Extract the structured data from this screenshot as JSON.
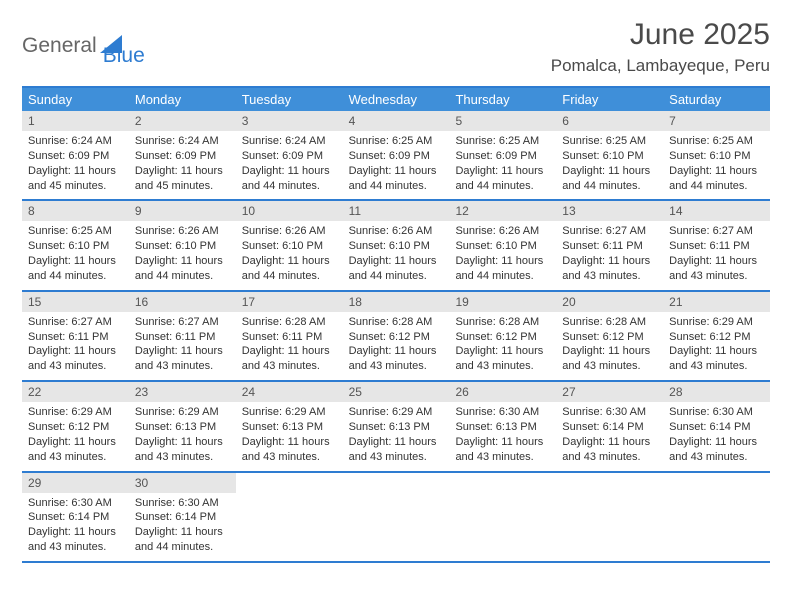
{
  "brand": {
    "part1": "General",
    "part2": "Blue"
  },
  "title": "June 2025",
  "location": "Pomalca, Lambayeque, Peru",
  "colors": {
    "accent": "#2e7cd1",
    "header_bg": "#3f8fd9",
    "daynum_bg": "#e6e6e6",
    "text": "#333333",
    "title_text": "#4a4a4a"
  },
  "day_names": [
    "Sunday",
    "Monday",
    "Tuesday",
    "Wednesday",
    "Thursday",
    "Friday",
    "Saturday"
  ],
  "weeks": [
    [
      {
        "n": "1",
        "sr": "6:24 AM",
        "ss": "6:09 PM",
        "dl": "11 hours and 45 minutes."
      },
      {
        "n": "2",
        "sr": "6:24 AM",
        "ss": "6:09 PM",
        "dl": "11 hours and 45 minutes."
      },
      {
        "n": "3",
        "sr": "6:24 AM",
        "ss": "6:09 PM",
        "dl": "11 hours and 44 minutes."
      },
      {
        "n": "4",
        "sr": "6:25 AM",
        "ss": "6:09 PM",
        "dl": "11 hours and 44 minutes."
      },
      {
        "n": "5",
        "sr": "6:25 AM",
        "ss": "6:09 PM",
        "dl": "11 hours and 44 minutes."
      },
      {
        "n": "6",
        "sr": "6:25 AM",
        "ss": "6:10 PM",
        "dl": "11 hours and 44 minutes."
      },
      {
        "n": "7",
        "sr": "6:25 AM",
        "ss": "6:10 PM",
        "dl": "11 hours and 44 minutes."
      }
    ],
    [
      {
        "n": "8",
        "sr": "6:25 AM",
        "ss": "6:10 PM",
        "dl": "11 hours and 44 minutes."
      },
      {
        "n": "9",
        "sr": "6:26 AM",
        "ss": "6:10 PM",
        "dl": "11 hours and 44 minutes."
      },
      {
        "n": "10",
        "sr": "6:26 AM",
        "ss": "6:10 PM",
        "dl": "11 hours and 44 minutes."
      },
      {
        "n": "11",
        "sr": "6:26 AM",
        "ss": "6:10 PM",
        "dl": "11 hours and 44 minutes."
      },
      {
        "n": "12",
        "sr": "6:26 AM",
        "ss": "6:10 PM",
        "dl": "11 hours and 44 minutes."
      },
      {
        "n": "13",
        "sr": "6:27 AM",
        "ss": "6:11 PM",
        "dl": "11 hours and 43 minutes."
      },
      {
        "n": "14",
        "sr": "6:27 AM",
        "ss": "6:11 PM",
        "dl": "11 hours and 43 minutes."
      }
    ],
    [
      {
        "n": "15",
        "sr": "6:27 AM",
        "ss": "6:11 PM",
        "dl": "11 hours and 43 minutes."
      },
      {
        "n": "16",
        "sr": "6:27 AM",
        "ss": "6:11 PM",
        "dl": "11 hours and 43 minutes."
      },
      {
        "n": "17",
        "sr": "6:28 AM",
        "ss": "6:11 PM",
        "dl": "11 hours and 43 minutes."
      },
      {
        "n": "18",
        "sr": "6:28 AM",
        "ss": "6:12 PM",
        "dl": "11 hours and 43 minutes."
      },
      {
        "n": "19",
        "sr": "6:28 AM",
        "ss": "6:12 PM",
        "dl": "11 hours and 43 minutes."
      },
      {
        "n": "20",
        "sr": "6:28 AM",
        "ss": "6:12 PM",
        "dl": "11 hours and 43 minutes."
      },
      {
        "n": "21",
        "sr": "6:29 AM",
        "ss": "6:12 PM",
        "dl": "11 hours and 43 minutes."
      }
    ],
    [
      {
        "n": "22",
        "sr": "6:29 AM",
        "ss": "6:12 PM",
        "dl": "11 hours and 43 minutes."
      },
      {
        "n": "23",
        "sr": "6:29 AM",
        "ss": "6:13 PM",
        "dl": "11 hours and 43 minutes."
      },
      {
        "n": "24",
        "sr": "6:29 AM",
        "ss": "6:13 PM",
        "dl": "11 hours and 43 minutes."
      },
      {
        "n": "25",
        "sr": "6:29 AM",
        "ss": "6:13 PM",
        "dl": "11 hours and 43 minutes."
      },
      {
        "n": "26",
        "sr": "6:30 AM",
        "ss": "6:13 PM",
        "dl": "11 hours and 43 minutes."
      },
      {
        "n": "27",
        "sr": "6:30 AM",
        "ss": "6:14 PM",
        "dl": "11 hours and 43 minutes."
      },
      {
        "n": "28",
        "sr": "6:30 AM",
        "ss": "6:14 PM",
        "dl": "11 hours and 43 minutes."
      }
    ],
    [
      {
        "n": "29",
        "sr": "6:30 AM",
        "ss": "6:14 PM",
        "dl": "11 hours and 43 minutes."
      },
      {
        "n": "30",
        "sr": "6:30 AM",
        "ss": "6:14 PM",
        "dl": "11 hours and 44 minutes."
      },
      {
        "n": "",
        "sr": "",
        "ss": "",
        "dl": ""
      },
      {
        "n": "",
        "sr": "",
        "ss": "",
        "dl": ""
      },
      {
        "n": "",
        "sr": "",
        "ss": "",
        "dl": ""
      },
      {
        "n": "",
        "sr": "",
        "ss": "",
        "dl": ""
      },
      {
        "n": "",
        "sr": "",
        "ss": "",
        "dl": ""
      }
    ]
  ],
  "labels": {
    "sunrise": "Sunrise: ",
    "sunset": "Sunset: ",
    "daylight": "Daylight: "
  }
}
